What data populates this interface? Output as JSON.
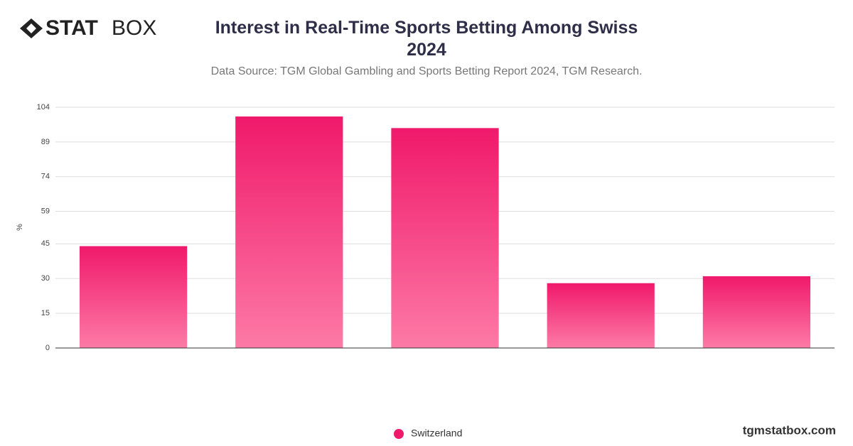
{
  "logo": {
    "bold": "STAT",
    "light": "BOX"
  },
  "footer": "tgmstatbox.com",
  "chart_data": {
    "type": "bar",
    "title": "Interest in Real-Time Sports Betting Among Swiss 2024",
    "subtitle": "Data Source: TGM Global Gambling and Sports Betting Report 2024, TGM Research.",
    "y_label": "%",
    "categories": [
      null,
      null,
      null,
      null,
      null
    ],
    "series": [
      {
        "name": "Switzerland",
        "color": "#f0196b",
        "values": [
          44,
          100,
          95,
          28,
          31
        ]
      }
    ],
    "ylim": [
      0,
      104
    ],
    "yticks": [
      0,
      15,
      30,
      45,
      59,
      74,
      89,
      104
    ],
    "grid": true
  }
}
